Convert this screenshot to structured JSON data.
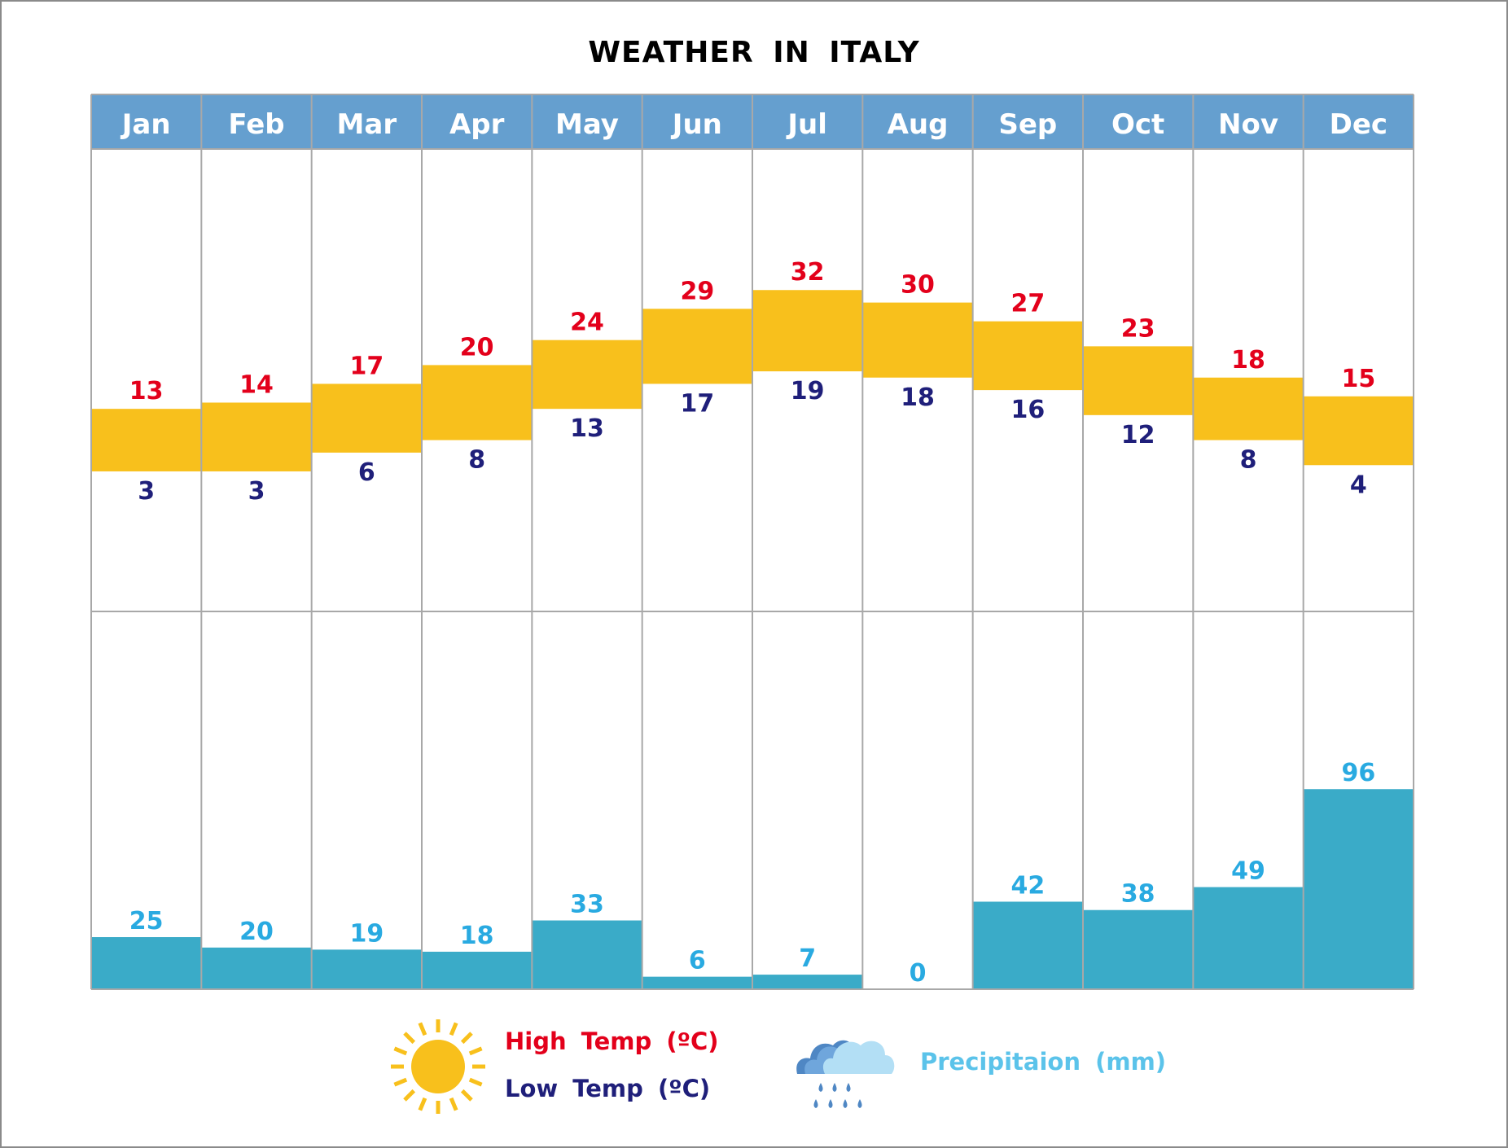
{
  "chart_data": {
    "type": "bar",
    "title": "WEATHER IN ITALY",
    "categories": [
      "Jan",
      "Feb",
      "Mar",
      "Apr",
      "May",
      "Jun",
      "Jul",
      "Aug",
      "Sep",
      "Oct",
      "Nov",
      "Dec"
    ],
    "series": [
      {
        "name": "High Temp (°C)",
        "values": [
          13,
          14,
          17,
          20,
          24,
          29,
          32,
          30,
          27,
          23,
          18,
          15
        ]
      },
      {
        "name": "Low Temp (°C)",
        "values": [
          3,
          3,
          6,
          8,
          13,
          17,
          19,
          18,
          16,
          12,
          8,
          4
        ]
      },
      {
        "name": "Precipitaion (mm)",
        "values": [
          25,
          20,
          19,
          18,
          33,
          6,
          7,
          0,
          42,
          38,
          49,
          96
        ]
      }
    ],
    "legend": "bottom",
    "colors": {
      "header": "#659fcf",
      "temp_band": "#f8c01c",
      "high": "#e3001b",
      "low": "#1f1f7a",
      "precip_bar": "#3aabc8",
      "precip_label": "#29aae1",
      "grid": "#a8a8a8"
    }
  },
  "legend": {
    "high_label": "High Temp (ºC)",
    "low_label": "Low Temp (ºC)",
    "precip_label": "Precipitaion (mm)",
    "sun_icon": "sun-icon",
    "rain_icon": "rain-cloud-icon"
  }
}
